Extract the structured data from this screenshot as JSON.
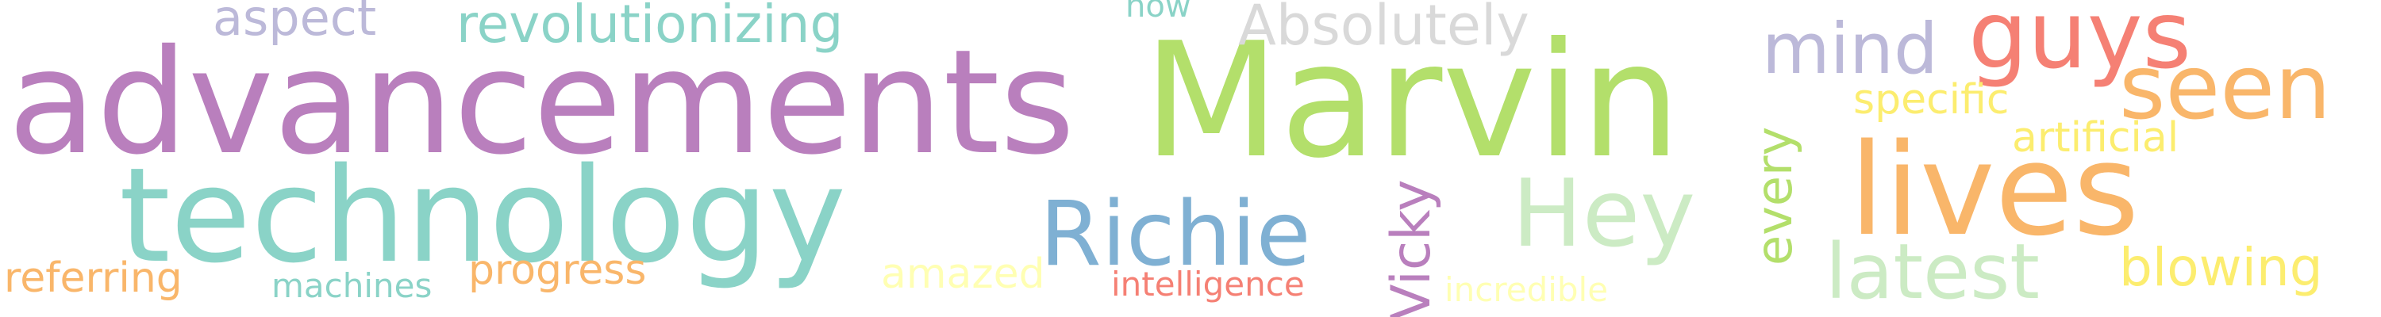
{
  "words": [
    {
      "key": "advancements",
      "text": "advancements",
      "color": "#b97fbd"
    },
    {
      "key": "marvin",
      "text": "Marvin",
      "color": "#b3df6b"
    },
    {
      "key": "technology",
      "text": "technology",
      "color": "#8ad3c7"
    },
    {
      "key": "lives",
      "text": "lives",
      "color": "#f9b66a"
    },
    {
      "key": "guys",
      "text": "guys",
      "color": "#f58074"
    },
    {
      "key": "seen",
      "text": "seen",
      "color": "#f9b66a"
    },
    {
      "key": "mind",
      "text": "mind",
      "color": "#bcb9d9"
    },
    {
      "key": "richie",
      "text": "Richie",
      "color": "#7fb0d3"
    },
    {
      "key": "hey",
      "text": "Hey",
      "color": "#ccebc4"
    },
    {
      "key": "latest",
      "text": "latest",
      "color": "#ccebc4"
    },
    {
      "key": "absolutely",
      "text": "Absolutely",
      "color": "#d9d9d9"
    },
    {
      "key": "revolutionizing",
      "text": "revolutionizing",
      "color": "#8ad3c7"
    },
    {
      "key": "aspect",
      "text": "aspect",
      "color": "#bcb9d9"
    },
    {
      "key": "vicky",
      "text": "Vicky",
      "color": "#b97fbd"
    },
    {
      "key": "every",
      "text": "every",
      "color": "#b3df6b"
    },
    {
      "key": "blowing",
      "text": "blowing",
      "color": "#fced6f"
    },
    {
      "key": "specific",
      "text": "specific",
      "color": "#fced6f"
    },
    {
      "key": "artificial",
      "text": "artificial",
      "color": "#fced6f"
    },
    {
      "key": "referring",
      "text": "referring",
      "color": "#f9b66a"
    },
    {
      "key": "progress",
      "text": "progress",
      "color": "#f9b66a"
    },
    {
      "key": "machines",
      "text": "machines",
      "color": "#8ad3c7"
    },
    {
      "key": "amazed",
      "text": "amazed",
      "color": "#ffffb3"
    },
    {
      "key": "intelligence",
      "text": "intelligence",
      "color": "#f58074"
    },
    {
      "key": "incredible",
      "text": "incredible",
      "color": "#ffffb3"
    },
    {
      "key": "now",
      "text": "now",
      "color": "#8ad3c7"
    }
  ]
}
